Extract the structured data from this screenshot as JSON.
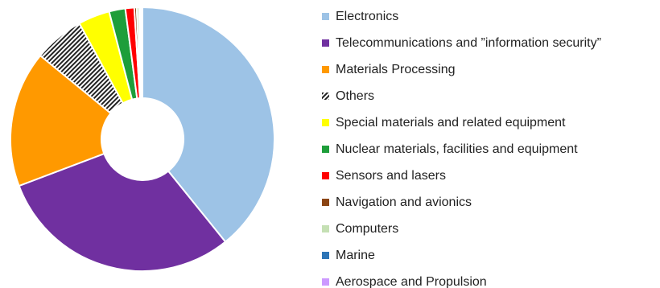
{
  "chart_data": {
    "type": "pie",
    "donut": true,
    "title": "",
    "legend_position": "right",
    "slices": [
      {
        "label": "Electronics",
        "value": 39.5,
        "color": "#9DC3E6",
        "pattern": ""
      },
      {
        "label": "Telecommunications and ”information security”",
        "value": 30.3,
        "color": "#7030A0",
        "pattern": ""
      },
      {
        "label": "Materials Processing",
        "value": 16.8,
        "color": "#FF9900",
        "pattern": ""
      },
      {
        "label": "Others",
        "value": 6.2,
        "color": "#FFFFFF",
        "pattern": "diagonal-stripes"
      },
      {
        "label": "Special materials and related equipment",
        "value": 3.9,
        "color": "#FFFF00",
        "pattern": ""
      },
      {
        "label": "Nuclear materials, facilities and equipment",
        "value": 2.0,
        "color": "#1E9E3A",
        "pattern": ""
      },
      {
        "label": "Sensors and lasers",
        "value": 1.1,
        "color": "#FF0000",
        "pattern": ""
      },
      {
        "label": "Navigation and avionics",
        "value": 0.3,
        "color": "#8B4513",
        "pattern": ""
      },
      {
        "label": "Computers",
        "value": 0.3,
        "color": "#C5E0B4",
        "pattern": ""
      },
      {
        "label": "Marine",
        "value": 0.2,
        "color": "#2E75B6",
        "pattern": ""
      },
      {
        "label": "Aerospace and Propulsion",
        "value": 0.2,
        "color": "#CC99FF",
        "pattern": ""
      }
    ]
  }
}
